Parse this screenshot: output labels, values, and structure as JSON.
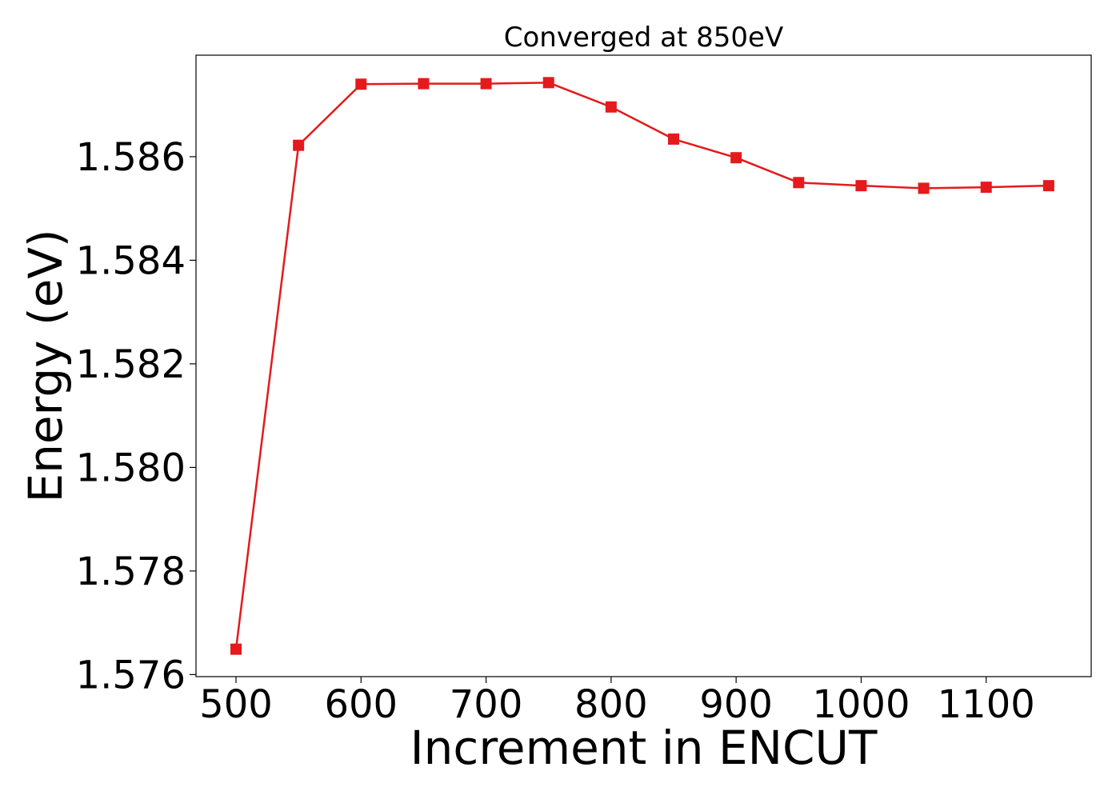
{
  "chart_data": {
    "type": "line",
    "title": "Converged at 850eV",
    "xlabel": "Increment in ENCUT",
    "ylabel": "Energy (eV)",
    "x": [
      500,
      550,
      600,
      650,
      700,
      750,
      800,
      850,
      900,
      950,
      1000,
      1050,
      1100,
      1150
    ],
    "series": [
      {
        "values": [
          1.57649,
          1.58622,
          1.5874,
          1.58741,
          1.58741,
          1.58743,
          1.58696,
          1.58634,
          1.58598,
          1.5855,
          1.58544,
          1.58539,
          1.58541,
          1.58544
        ],
        "color": "#e41a1c",
        "marker": "square"
      }
    ],
    "xlim": [
      468,
      1184
    ],
    "ylim": [
      1.57596,
      1.58796
    ],
    "xticks": [
      500,
      600,
      700,
      800,
      900,
      1000,
      1100
    ],
    "xtick_labels": [
      "500",
      "600",
      "700",
      "800",
      "900",
      "1000",
      "1100"
    ],
    "yticks": [
      1.576,
      1.578,
      1.58,
      1.582,
      1.584,
      1.586
    ],
    "ytick_labels": [
      "1.576",
      "1.578",
      "1.580",
      "1.582",
      "1.584",
      "1.586"
    ],
    "grid": false,
    "legend": "none"
  }
}
